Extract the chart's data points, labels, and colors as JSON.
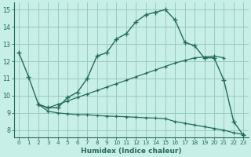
{
  "xlabel": "Humidex (Indice chaleur)",
  "xlim": [
    -0.5,
    23.5
  ],
  "ylim": [
    7.6,
    15.4
  ],
  "yticks": [
    8,
    9,
    10,
    11,
    12,
    13,
    14,
    15
  ],
  "xticks": [
    0,
    1,
    2,
    3,
    4,
    5,
    6,
    7,
    8,
    9,
    10,
    11,
    12,
    13,
    14,
    15,
    16,
    17,
    18,
    19,
    20,
    21,
    22,
    23
  ],
  "bg_color": "#c8eee8",
  "grid_color": "#98ccbb",
  "line_color": "#236b5a",
  "line1_x": [
    0,
    1,
    2,
    3,
    4,
    5,
    6,
    7,
    8,
    9,
    10,
    11,
    12,
    13,
    14,
    15,
    16,
    17,
    18,
    19,
    20,
    21,
    22,
    23
  ],
  "line1_y": [
    12.5,
    11.1,
    9.5,
    9.3,
    9.3,
    9.9,
    10.2,
    11.0,
    12.3,
    12.5,
    13.3,
    13.6,
    14.3,
    14.7,
    14.85,
    15.0,
    14.4,
    13.1,
    12.9,
    12.2,
    12.2,
    10.9,
    8.5,
    7.7
  ],
  "line2_x": [
    2,
    3,
    4,
    5,
    6,
    7,
    8,
    9,
    10,
    11,
    12,
    13,
    14,
    15,
    16,
    17,
    18,
    19,
    20,
    21
  ],
  "line2_y": [
    9.5,
    9.3,
    9.5,
    9.7,
    9.9,
    10.1,
    10.3,
    10.5,
    10.7,
    10.9,
    11.1,
    11.3,
    11.5,
    11.7,
    11.9,
    12.05,
    12.2,
    12.25,
    12.3,
    12.2
  ],
  "line3_x": [
    2,
    3,
    4,
    5,
    6,
    7,
    8,
    9,
    10,
    11,
    12,
    13,
    14,
    15,
    16,
    17,
    18,
    19,
    20,
    21,
    22,
    23
  ],
  "line3_y": [
    9.5,
    9.1,
    9.0,
    8.95,
    8.9,
    8.9,
    8.85,
    8.82,
    8.8,
    8.78,
    8.75,
    8.72,
    8.7,
    8.67,
    8.5,
    8.4,
    8.3,
    8.2,
    8.1,
    8.0,
    7.85,
    7.75
  ]
}
